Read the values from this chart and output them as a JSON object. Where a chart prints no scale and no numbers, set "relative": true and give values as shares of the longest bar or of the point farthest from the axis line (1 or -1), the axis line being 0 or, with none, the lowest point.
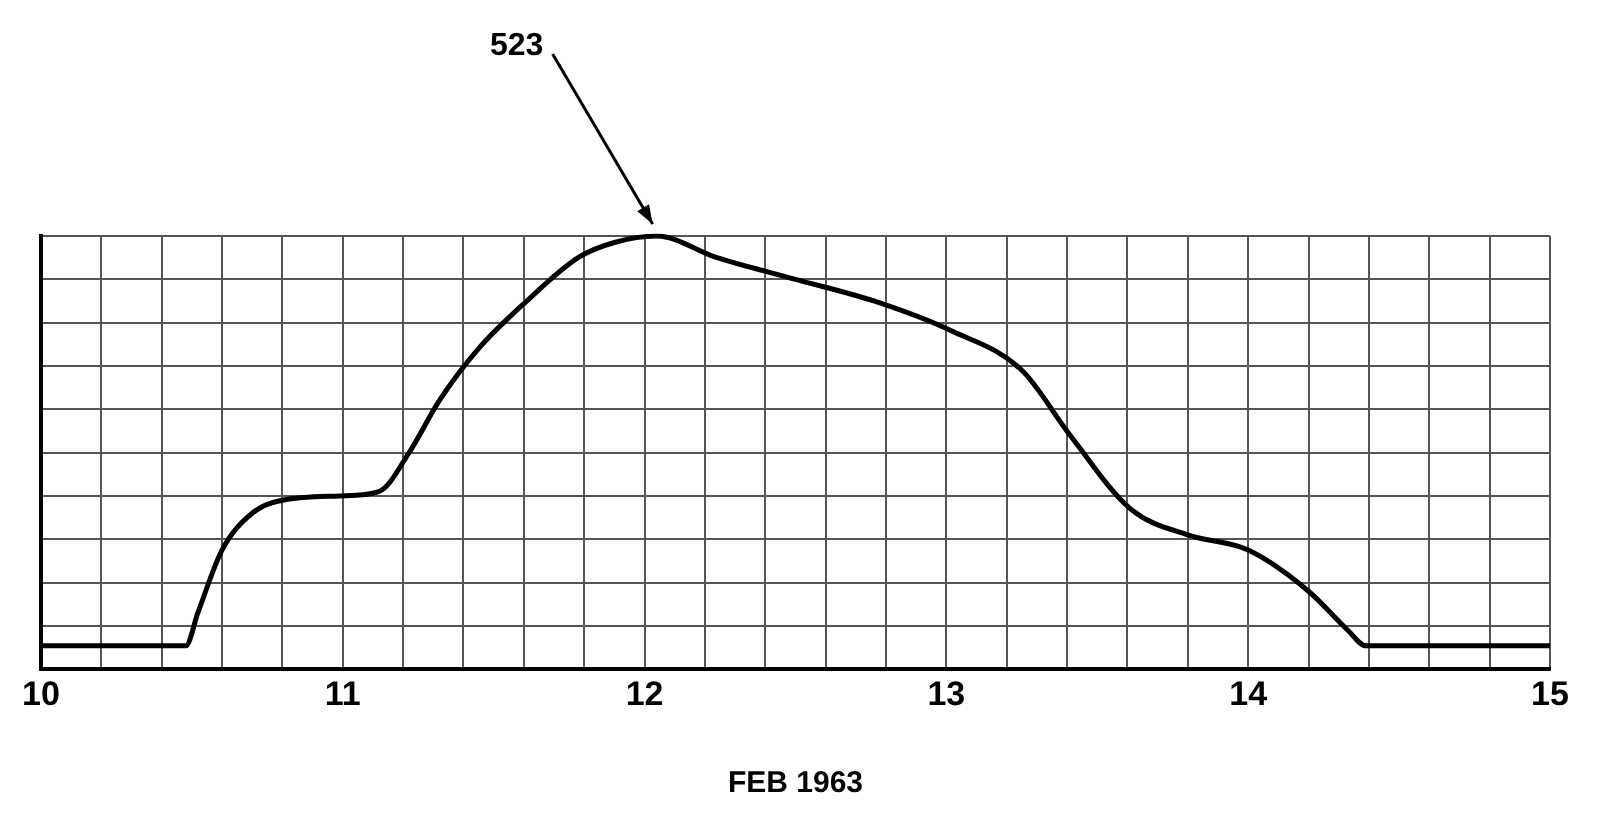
{
  "chart_data": {
    "type": "line",
    "relative": true,
    "xlabel": "FEB 1963",
    "series": [
      {
        "color": "#000000",
        "x": [
          10,
          10.48,
          10.52,
          10.6,
          10.7,
          10.8,
          10.99,
          11.12,
          11.22,
          11.32,
          11.45,
          11.61,
          11.78,
          11.9,
          12.04,
          12.24,
          12.5,
          12.76,
          13.02,
          13.25,
          13.41,
          13.61,
          13.8,
          14.0,
          14.2,
          14.33,
          14.39,
          15
        ],
        "values": [
          0.054,
          0.054,
          0.13,
          0.275,
          0.36,
          0.39,
          0.4,
          0.41,
          0.5,
          0.62,
          0.74,
          0.85,
          0.95,
          0.985,
          1,
          0.95,
          0.9,
          0.85,
          0.78,
          0.69,
          0.54,
          0.37,
          0.31,
          0.275,
          0.18,
          0.09,
          0.054,
          0.054
        ]
      }
    ],
    "xlim": [
      10,
      15
    ],
    "xticks": [
      10,
      {
        "value": 10.2,
        "label": null
      },
      {
        "value": 10.4,
        "label": null
      },
      {
        "value": 10.6,
        "label": null
      },
      {
        "value": 10.8,
        "label": null
      },
      11,
      {
        "value": 11.2,
        "label": null
      },
      {
        "value": 11.4,
        "label": null
      },
      {
        "value": 11.6,
        "label": null
      },
      {
        "value": 11.8,
        "label": null
      },
      12,
      {
        "value": 12.2,
        "label": null
      },
      {
        "value": 12.4,
        "label": null
      },
      {
        "value": 12.6,
        "label": null
      },
      {
        "value": 12.8,
        "label": null
      },
      13,
      {
        "value": 13.2,
        "label": null
      },
      {
        "value": 13.4,
        "label": null
      },
      {
        "value": 13.6,
        "label": null
      },
      {
        "value": 13.8,
        "label": null
      },
      14,
      {
        "value": 14.2,
        "label": null
      },
      {
        "value": 14.4,
        "label": null
      },
      {
        "value": 14.6,
        "label": null
      },
      {
        "value": 14.8,
        "label": null
      },
      15
    ],
    "annotations": [
      {
        "text": "523",
        "x": 12.04,
        "y": 1
      }
    ],
    "grid": true,
    "legend": false,
    "marker": "none",
    "line_style": "solid"
  }
}
